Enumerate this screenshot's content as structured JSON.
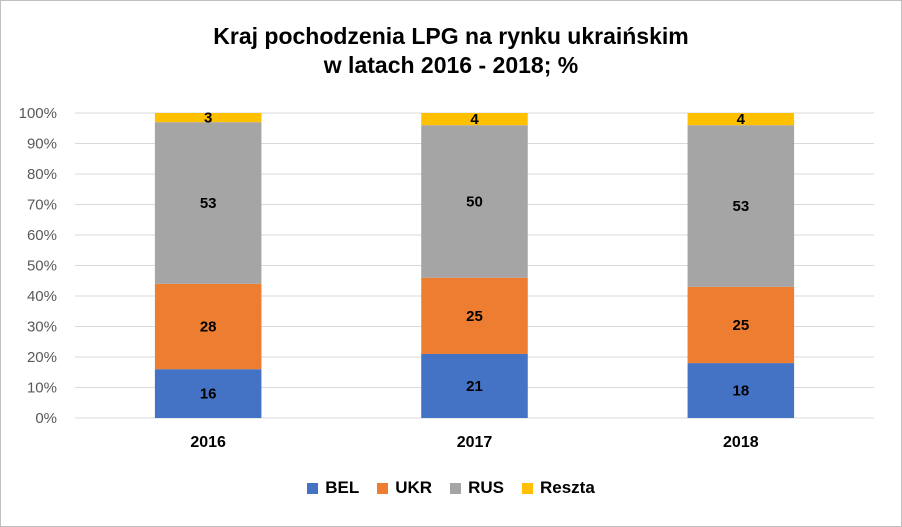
{
  "chart_data": {
    "type": "bar",
    "stacked": true,
    "title_line1": "Kraj pochodzenia LPG na rynku ukraińskim",
    "title_line2": "w latach 2016 - 2018; %",
    "categories": [
      "2016",
      "2017",
      "2018"
    ],
    "series": [
      {
        "name": "BEL",
        "color": "#4472C4",
        "values": [
          16,
          21,
          18
        ]
      },
      {
        "name": "UKR",
        "color": "#ED7D31",
        "values": [
          28,
          25,
          25
        ]
      },
      {
        "name": "RUS",
        "color": "#A5A5A5",
        "values": [
          53,
          50,
          53
        ]
      },
      {
        "name": "Reszta",
        "color": "#FFC000",
        "values": [
          3,
          4,
          4
        ]
      }
    ],
    "ylim": [
      0,
      100
    ],
    "yticks": [
      "0%",
      "10%",
      "20%",
      "30%",
      "40%",
      "50%",
      "60%",
      "70%",
      "80%",
      "90%",
      "100%"
    ],
    "grid": true,
    "legend_position": "bottom"
  }
}
